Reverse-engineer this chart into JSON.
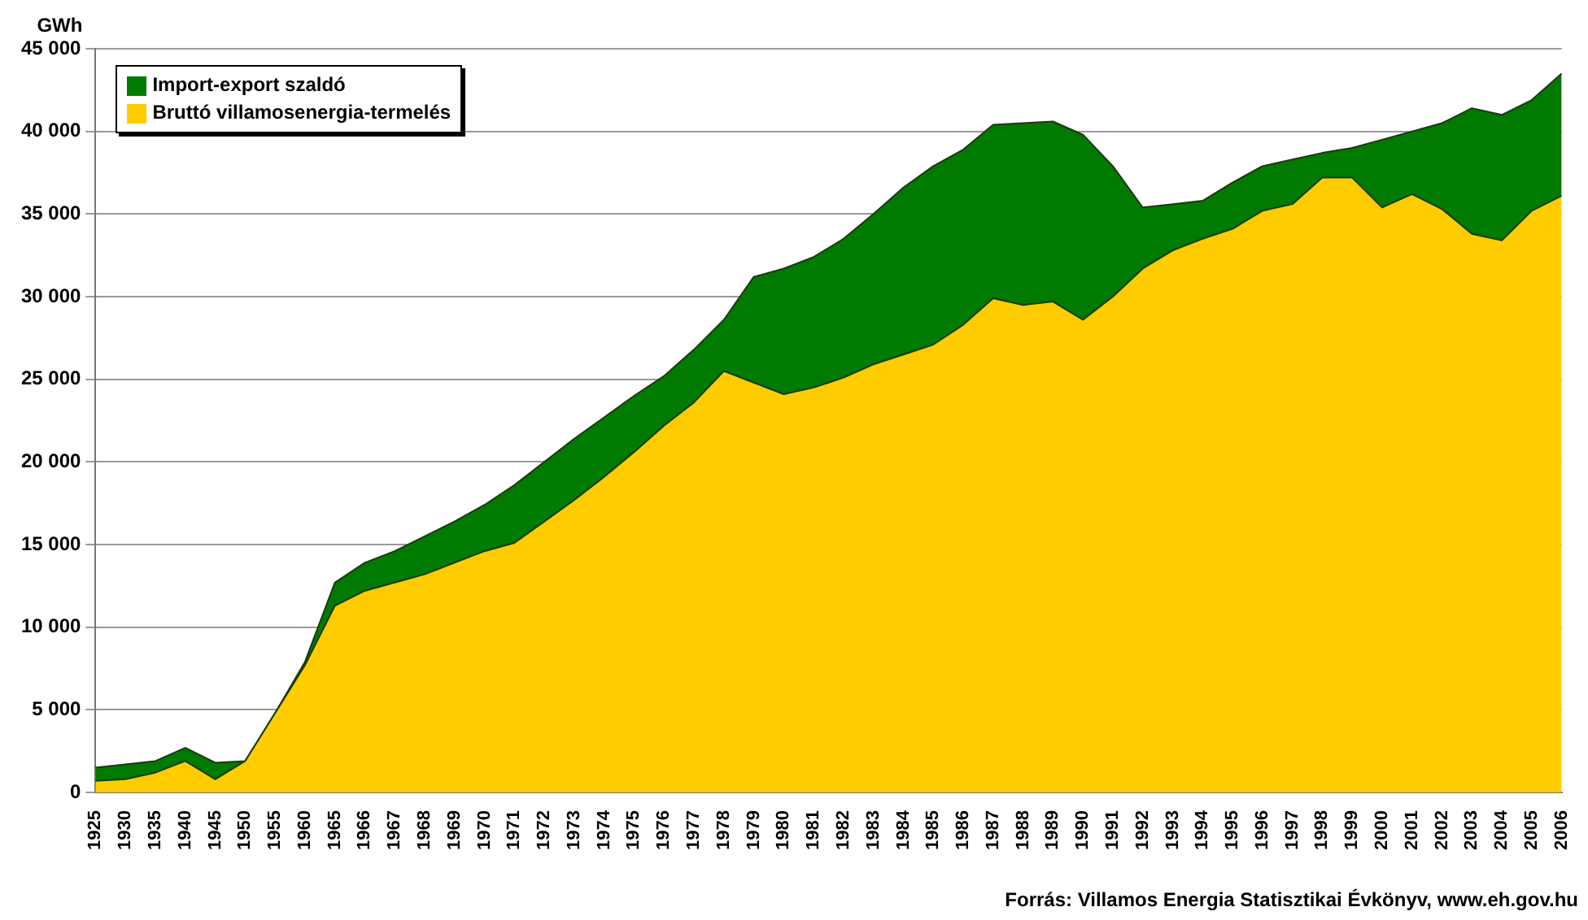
{
  "chart_data": {
    "type": "area",
    "stacked": true,
    "ylabel": "GWh",
    "categories": [
      "1925",
      "1930",
      "1935",
      "1940",
      "1945",
      "1950",
      "1955",
      "1960",
      "1965",
      "1966",
      "1967",
      "1968",
      "1969",
      "1970",
      "1971",
      "1972",
      "1973",
      "1974",
      "1975",
      "1976",
      "1977",
      "1978",
      "1979",
      "1980",
      "1981",
      "1982",
      "1983",
      "1984",
      "1985",
      "1986",
      "1987",
      "1988",
      "1989",
      "1990",
      "1991",
      "1992",
      "1993",
      "1994",
      "1995",
      "1996",
      "1997",
      "1998",
      "1999",
      "2000",
      "2001",
      "2002",
      "2003",
      "2004",
      "2005",
      "2006"
    ],
    "series": [
      {
        "name": "Bruttó villamosenergia-termelés",
        "color": "#ffcc00",
        "values": [
          700,
          800,
          1200,
          1900,
          800,
          1900,
          4800,
          7700,
          11300,
          12200,
          12700,
          13200,
          13900,
          14600,
          15100,
          16400,
          17700,
          19100,
          20600,
          22200,
          23600,
          25500,
          24800,
          24100,
          24500,
          25100,
          25900,
          26500,
          27100,
          28300,
          29900,
          29500,
          29700,
          28600,
          30000,
          31700,
          32800,
          33500,
          34100,
          35200,
          35600,
          37200,
          37200,
          35400,
          36200,
          35300,
          33800,
          33400,
          35200,
          36100
        ]
      },
      {
        "name": "Import-export szaldó",
        "color": "#007a00",
        "values": [
          800,
          900,
          700,
          800,
          1000,
          0,
          0,
          200,
          1400,
          1700,
          1900,
          2300,
          2500,
          2800,
          3500,
          3600,
          3700,
          3600,
          3400,
          3000,
          3200,
          3100,
          6400,
          7600,
          7900,
          8400,
          9100,
          10100,
          10800,
          10600,
          10500,
          11000,
          10900,
          11200,
          7900,
          3700,
          2800,
          2300,
          2800,
          2700,
          2700,
          1500,
          1800,
          4100,
          3800,
          5200,
          7600,
          7600,
          6700,
          7400
        ]
      }
    ],
    "ylim": [
      0,
      45000
    ],
    "yticks": [
      0,
      {
        "value": 5000,
        "label": "5 000"
      },
      {
        "value": 10000,
        "label": "10 000"
      },
      {
        "value": 15000,
        "label": "15 000"
      },
      {
        "value": 20000,
        "label": "20 000"
      },
      {
        "value": 25000,
        "label": "25 000"
      },
      {
        "value": 30000,
        "label": "30 000"
      },
      {
        "value": 35000,
        "label": "35 000"
      },
      {
        "value": 40000,
        "label": "40 000"
      },
      {
        "value": 45000,
        "label": "45 000"
      }
    ],
    "grid": "y",
    "legend": "top left",
    "annotations": [
      "Forrás: Villamos Energia Statisztikai Évkönyv, www.eh.gov.hu"
    ]
  }
}
